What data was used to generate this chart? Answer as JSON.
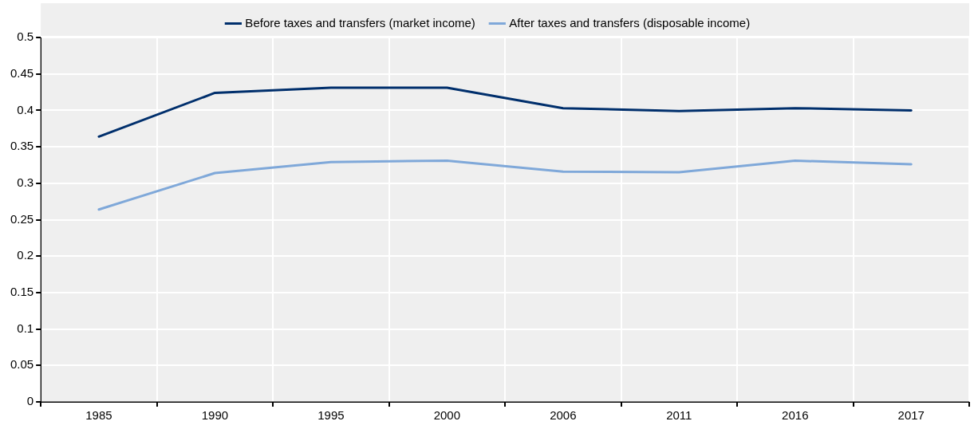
{
  "chart_data": {
    "type": "line",
    "categories": [
      "1985",
      "1990",
      "1995",
      "2000",
      "2006",
      "2011",
      "2016",
      "2017"
    ],
    "series": [
      {
        "name": "Before taxes and transfers (market income)",
        "color": "#002f6c",
        "values": [
          0.364,
          0.424,
          0.431,
          0.431,
          0.403,
          0.399,
          0.403,
          0.4
        ]
      },
      {
        "name": "After taxes and transfers (disposable income)",
        "color": "#7fa8d9",
        "values": [
          0.264,
          0.314,
          0.329,
          0.331,
          0.316,
          0.315,
          0.331,
          0.326
        ]
      }
    ],
    "ylim": [
      0,
      0.5
    ],
    "yticks": [
      0,
      0.05,
      0.1,
      0.15,
      0.2,
      0.25,
      0.3,
      0.35,
      0.4,
      0.45,
      0.5
    ],
    "grid": true,
    "legend": "top",
    "marker": "none",
    "line_style": "solid"
  }
}
